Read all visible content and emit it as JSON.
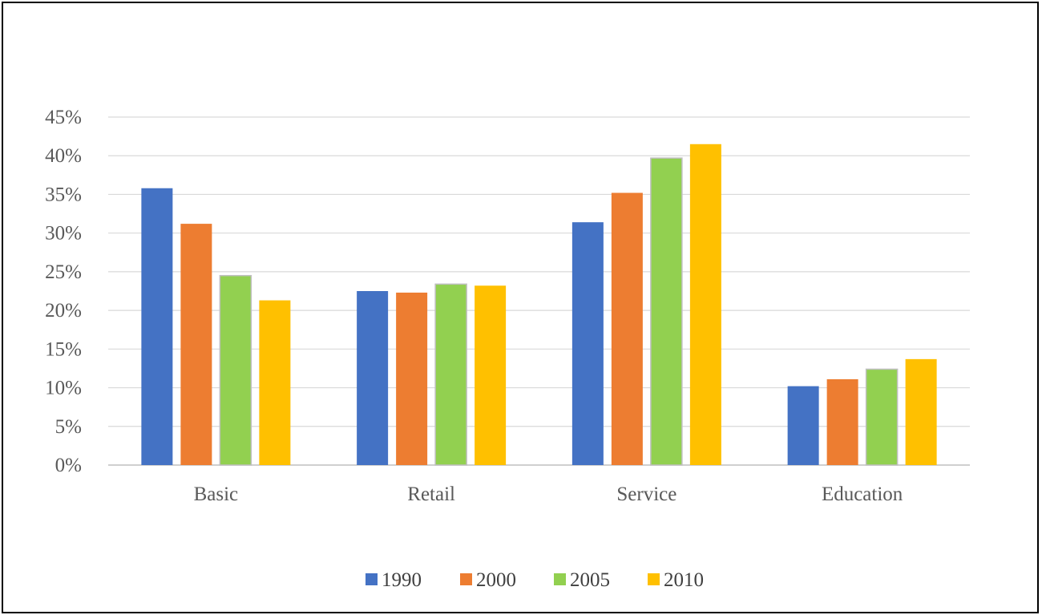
{
  "chart_data": {
    "type": "bar",
    "title": "",
    "xlabel": "",
    "ylabel": "",
    "categories": [
      "Basic",
      "Retail",
      "Service",
      "Education"
    ],
    "series": [
      {
        "name": "1990",
        "color": "#4472C4",
        "values": [
          35.8,
          22.5,
          31.4,
          10.2
        ]
      },
      {
        "name": "2000",
        "color": "#ED7D31",
        "values": [
          31.2,
          22.3,
          35.2,
          11.1
        ]
      },
      {
        "name": "2005",
        "color": "#92D050",
        "values": [
          24.5,
          23.4,
          39.7,
          12.4
        ]
      },
      {
        "name": "2010",
        "color": "#FFC000",
        "values": [
          21.3,
          23.2,
          41.5,
          13.7
        ]
      }
    ],
    "ylim": [
      0,
      45
    ],
    "y_ticks": [
      "0%",
      "5%",
      "10%",
      "15%",
      "20%",
      "25%",
      "30%",
      "35%",
      "40%",
      "45%"
    ],
    "y_tick_values": [
      0,
      5,
      10,
      15,
      20,
      25,
      30,
      35,
      40,
      45
    ],
    "grid": true,
    "legend_position": "bottom"
  }
}
